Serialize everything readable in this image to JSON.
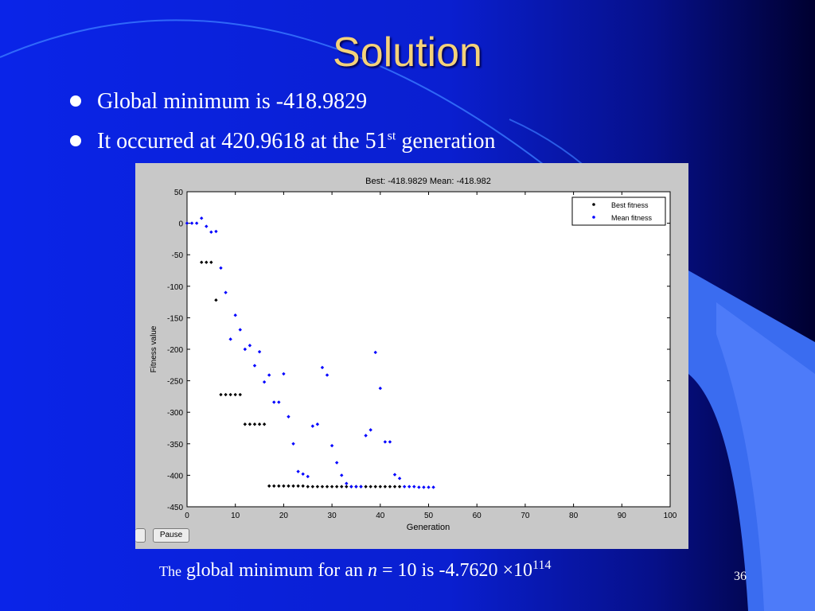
{
  "slide": {
    "title": "Solution",
    "bullets": [
      {
        "text": "Global minimum is -418.9829"
      },
      {
        "text": "It occurred at 420.9618 at the 51",
        "sup": "st",
        "after": " generation"
      }
    ],
    "footer": {
      "prefix": "The",
      "mid": " global minimum for an ",
      "n": "n",
      "eq": " = 10 is -4.7620 ×10",
      "exp": "114"
    },
    "page_number": "36"
  },
  "figure_buttons": {
    "pause_label": "Pause"
  },
  "chart_data": {
    "type": "scatter",
    "title": "Best: -418.9829 Mean: -418.982",
    "xlabel": "Generation",
    "ylabel": "Fitness value",
    "xlim": [
      0,
      100
    ],
    "ylim": [
      -450,
      50
    ],
    "xticks": [
      0,
      10,
      20,
      30,
      40,
      50,
      60,
      70,
      80,
      90,
      100
    ],
    "yticks": [
      50,
      0,
      -50,
      -100,
      -150,
      -200,
      -250,
      -300,
      -350,
      -400,
      -450
    ],
    "legend_position": "top-right",
    "grid": false,
    "series": [
      {
        "name": "Best fitness",
        "color": "#000000",
        "x": [
          3,
          4,
          5,
          6,
          7,
          8,
          9,
          10,
          11,
          12,
          13,
          14,
          15,
          16,
          17,
          18,
          19,
          20,
          21,
          22,
          23,
          24,
          25,
          26,
          27,
          28,
          29,
          30,
          31,
          32,
          33,
          34,
          35,
          36,
          37,
          38,
          39,
          40,
          41,
          42,
          43,
          44
        ],
        "y": [
          -62,
          -62,
          -62,
          -122,
          -272,
          -272,
          -272,
          -272,
          -272,
          -319,
          -319,
          -319,
          -319,
          -319,
          -417,
          -417,
          -417,
          -417,
          -417,
          -417,
          -417,
          -417,
          -418,
          -418,
          -418,
          -418,
          -418,
          -418,
          -418,
          -418,
          -418,
          -418,
          -418,
          -418,
          -418,
          -418,
          -418,
          -418,
          -418,
          -418,
          -418,
          -418
        ]
      },
      {
        "name": "Mean fitness",
        "color": "#0000ff",
        "x": [
          0,
          1,
          2,
          3,
          4,
          5,
          6,
          7,
          8,
          9,
          10,
          11,
          12,
          13,
          14,
          15,
          16,
          17,
          18,
          19,
          20,
          21,
          22,
          23,
          24,
          25,
          26,
          27,
          28,
          29,
          30,
          31,
          32,
          33,
          34,
          35,
          36,
          37,
          38,
          39,
          40,
          41,
          42,
          43,
          44,
          45,
          46,
          47,
          48,
          49,
          50,
          51
        ],
        "y": [
          0,
          0,
          0,
          8,
          -5,
          -14,
          -13,
          -71,
          -110,
          -184,
          -146,
          -169,
          -200,
          -194,
          -226,
          -204,
          -252,
          -241,
          -284,
          -284,
          -239,
          -307,
          -350,
          -394,
          -398,
          -402,
          -322,
          -319,
          -229,
          -241,
          -353,
          -380,
          -400,
          -413,
          -418,
          -418,
          -418,
          -337,
          -328,
          -205,
          -262,
          -347,
          -347,
          -399,
          -405,
          -418,
          -418,
          -418,
          -419,
          -419,
          -419,
          -419
        ]
      }
    ]
  }
}
